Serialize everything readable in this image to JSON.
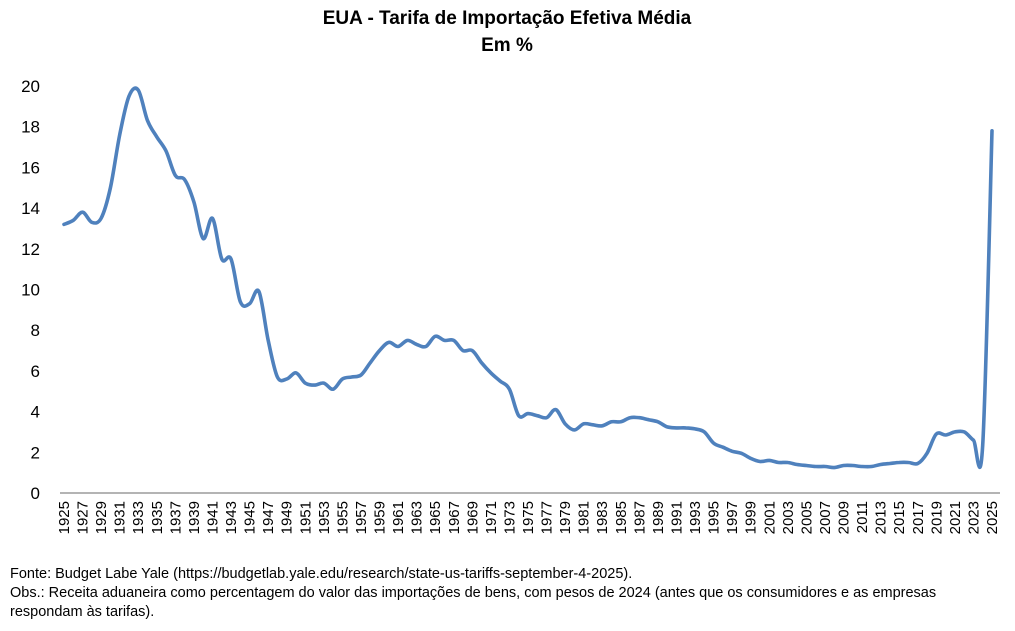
{
  "chart_data": {
    "type": "line",
    "title": "EUA - Tarifa de Importação Efetiva Média",
    "subtitle": "Em %",
    "xlabel": "",
    "ylabel": "",
    "ylim": [
      0,
      20
    ],
    "yticks": [
      0,
      2,
      4,
      6,
      8,
      10,
      12,
      14,
      16,
      18,
      20
    ],
    "xlim": [
      1925,
      2025
    ],
    "xtick_step": 2,
    "grid": false,
    "legend": "none",
    "line_color": "#4F81BD",
    "series": [
      {
        "name": "Tarifa de Importação Efetiva Média (%)",
        "x": [
          1925,
          1926,
          1927,
          1928,
          1929,
          1930,
          1931,
          1932,
          1933,
          1934,
          1935,
          1936,
          1937,
          1938,
          1939,
          1940,
          1941,
          1942,
          1943,
          1944,
          1945,
          1946,
          1947,
          1948,
          1949,
          1950,
          1951,
          1952,
          1953,
          1954,
          1955,
          1956,
          1957,
          1958,
          1959,
          1960,
          1961,
          1962,
          1963,
          1964,
          1965,
          1966,
          1967,
          1968,
          1969,
          1970,
          1971,
          1972,
          1973,
          1974,
          1975,
          1976,
          1977,
          1978,
          1979,
          1980,
          1981,
          1982,
          1983,
          1984,
          1985,
          1986,
          1987,
          1988,
          1989,
          1990,
          1991,
          1992,
          1993,
          1994,
          1995,
          1996,
          1997,
          1998,
          1999,
          2000,
          2001,
          2002,
          2003,
          2004,
          2005,
          2006,
          2007,
          2008,
          2009,
          2010,
          2011,
          2012,
          2013,
          2014,
          2015,
          2016,
          2017,
          2018,
          2019,
          2020,
          2021,
          2022,
          2023,
          2024,
          2025
        ],
        "values": [
          13.2,
          13.4,
          13.8,
          13.3,
          13.5,
          15.0,
          17.6,
          19.5,
          19.8,
          18.3,
          17.5,
          16.8,
          15.6,
          15.4,
          14.3,
          12.5,
          13.5,
          11.5,
          11.5,
          9.4,
          9.3,
          9.9,
          7.5,
          5.7,
          5.6,
          5.9,
          5.4,
          5.3,
          5.4,
          5.1,
          5.6,
          5.7,
          5.8,
          6.4,
          7.0,
          7.4,
          7.2,
          7.5,
          7.3,
          7.2,
          7.7,
          7.5,
          7.5,
          7.0,
          7.0,
          6.4,
          5.9,
          5.5,
          5.1,
          3.8,
          3.9,
          3.8,
          3.7,
          4.1,
          3.4,
          3.1,
          3.4,
          3.35,
          3.3,
          3.5,
          3.5,
          3.7,
          3.7,
          3.6,
          3.5,
          3.25,
          3.2,
          3.2,
          3.15,
          3.0,
          2.45,
          2.25,
          2.05,
          1.95,
          1.7,
          1.55,
          1.6,
          1.5,
          1.5,
          1.4,
          1.35,
          1.3,
          1.3,
          1.25,
          1.35,
          1.35,
          1.3,
          1.3,
          1.4,
          1.45,
          1.5,
          1.5,
          1.45,
          1.95,
          2.9,
          2.85,
          3.0,
          3.0,
          2.6,
          2.35,
          17.8
        ]
      }
    ]
  },
  "notes": {
    "source": "Fonte: Budget Labe Yale (https://budgetlab.yale.edu/research/state-us-tariffs-september-4-2025).",
    "obs": "Obs.: Receita aduaneira como percentagem  do valor das importações de bens, com pesos de 2024 (antes que os consumidores e as empresas respondam às tarifas)."
  }
}
